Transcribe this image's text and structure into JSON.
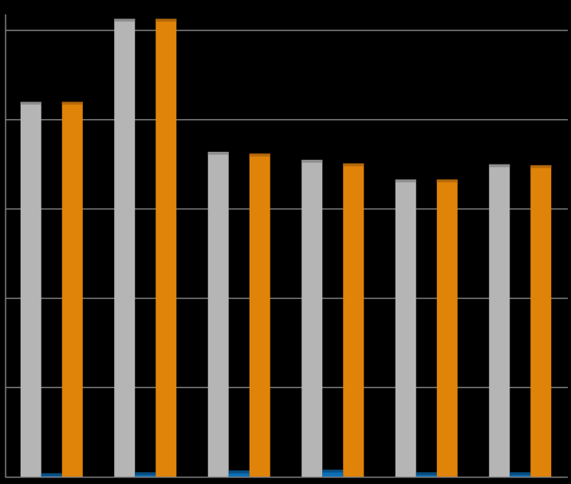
{
  "chart_data": {
    "type": "bar",
    "title": "",
    "xlabel": "",
    "ylabel": "",
    "categories": [
      "",
      "",
      "",
      "",
      "",
      ""
    ],
    "ylim": [
      0,
      5.18
    ],
    "grid": true,
    "legend": "none",
    "series": [
      {
        "color": "#b5b5b5",
        "cap_color": "#8e8e8e",
        "values": [
          4.2,
          5.13,
          3.64,
          3.55,
          3.33,
          3.5
        ]
      },
      {
        "color": "#0a6fb8",
        "cap_color": "#084e82",
        "values": [
          0.04,
          0.05,
          0.07,
          0.08,
          0.05,
          0.05
        ]
      },
      {
        "color": "#e08309",
        "cap_color": "#b5690a",
        "values": [
          4.2,
          5.13,
          3.62,
          3.51,
          3.33,
          3.49
        ]
      }
    ]
  },
  "colors": {
    "background": "#000000",
    "gridline": "#808080",
    "axis": "#808080"
  }
}
